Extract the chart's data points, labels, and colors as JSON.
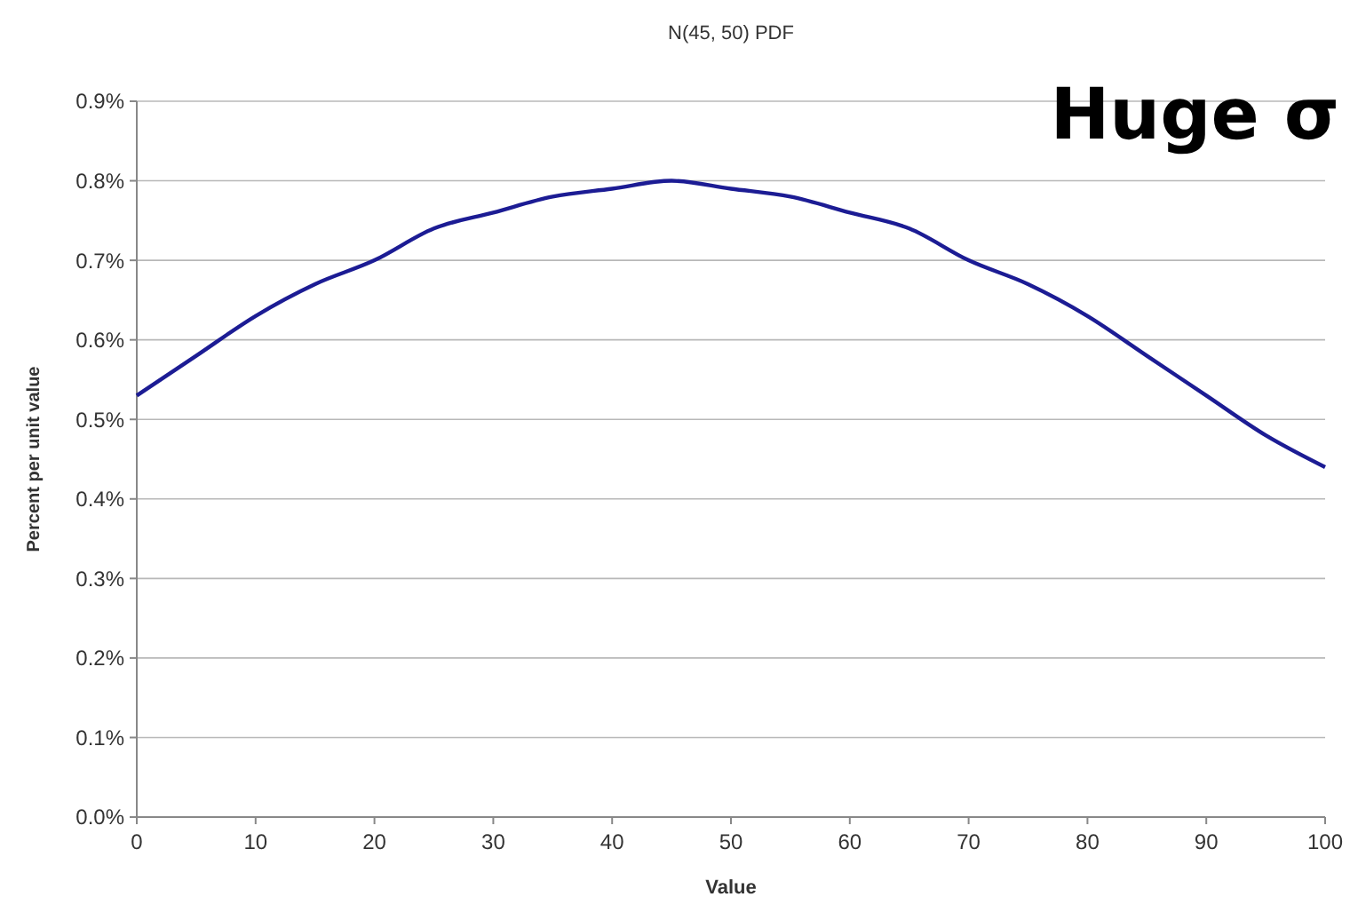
{
  "chart_data": {
    "type": "line",
    "title": "N(45, 50) PDF",
    "xlabel": "Value",
    "ylabel": "Percent per unit value",
    "annotations": [
      "Huge σ"
    ],
    "x": [
      0,
      5,
      10,
      15,
      20,
      25,
      30,
      35,
      40,
      45,
      50,
      55,
      60,
      65,
      70,
      75,
      80,
      85,
      90,
      95,
      100
    ],
    "series": [
      {
        "color": "#1c1c94",
        "values": [
          0.53,
          0.58,
          0.63,
          0.67,
          0.7,
          0.74,
          0.76,
          0.78,
          0.79,
          0.8,
          0.79,
          0.78,
          0.76,
          0.74,
          0.7,
          0.67,
          0.63,
          0.58,
          0.53,
          0.48,
          0.44
        ]
      }
    ],
    "xlim": [
      0,
      100
    ],
    "xticks": [
      0,
      10,
      20,
      30,
      40,
      50,
      60,
      70,
      80,
      90,
      100
    ],
    "ylim": [
      0,
      0.9
    ],
    "yticks": [
      {
        "value": 0,
        "label": "0.0%"
      },
      {
        "value": 0.1,
        "label": "0.1%"
      },
      {
        "value": 0.2,
        "label": "0.2%"
      },
      {
        "value": 0.3,
        "label": "0.3%"
      },
      {
        "value": 0.4,
        "label": "0.4%"
      },
      {
        "value": 0.5,
        "label": "0.5%"
      },
      {
        "value": 0.6,
        "label": "0.6%"
      },
      {
        "value": 0.7,
        "label": "0.7%"
      },
      {
        "value": 0.8,
        "label": "0.8%"
      },
      {
        "value": 0.9,
        "label": "0.9%"
      }
    ],
    "grid": "y",
    "marker": "none",
    "line_style": "solid"
  }
}
